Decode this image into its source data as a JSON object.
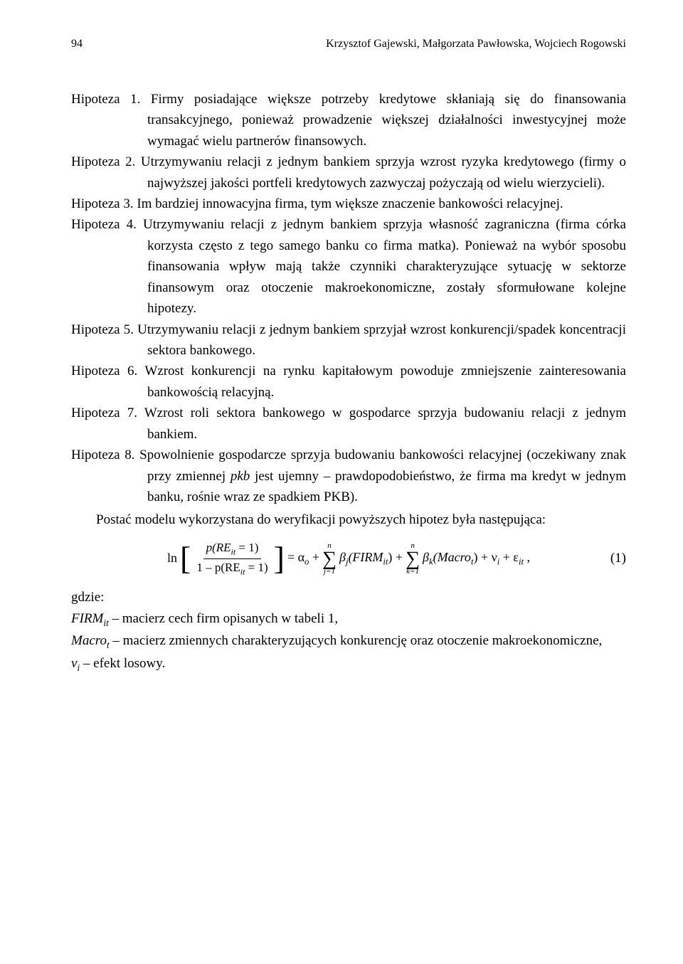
{
  "page_number": "94",
  "authors": "Krzysztof Gajewski, Małgorzata Pawłowska, Wojciech Rogowski",
  "hypotheses": [
    {
      "label": "Hipoteza 1.",
      "text": "Firmy posiadające większe potrzeby kredytowe skłaniają się do finansowania transakcyjnego, ponieważ prowadzenie większej działalności inwestycyjnej może wymagać wielu partnerów finansowych."
    },
    {
      "label": "Hipoteza 2.",
      "text": "Utrzymywaniu relacji z jednym bankiem sprzyja wzrost ryzyka kredytowego (firmy o najwyższej jakości portfeli kredytowych zazwyczaj pożyczają od wielu wierzycieli)."
    },
    {
      "label": "Hipoteza 3.",
      "text": "Im bardziej innowacyjna firma, tym większe znaczenie bankowości relacyjnej."
    },
    {
      "label": "Hipoteza 4.",
      "text": "Utrzymywaniu relacji z jednym bankiem sprzyja własność zagraniczna (firma córka korzysta często z tego samego banku co firma matka). Ponieważ na wybór sposobu finansowania wpływ mają także czynniki charakteryzujące sytuację w sektorze finansowym oraz otoczenie makroekonomiczne, zostały sformułowane kolejne hipotezy."
    },
    {
      "label": "Hipoteza 5.",
      "text": "Utrzymywaniu relacji z jednym bankiem sprzyjał wzrost konkurencji/spadek koncentracji sektora bankowego."
    },
    {
      "label": "Hipoteza 6.",
      "text": "Wzrost konkurencji na rynku kapitałowym powoduje zmniejszenie zainteresowania bankowością relacyjną."
    },
    {
      "label": "Hipoteza 7.",
      "text": "Wzrost roli sektora bankowego w gospodarce sprzyja budowaniu relacji z jednym bankiem."
    },
    {
      "label": "Hipoteza 8.",
      "text": "Spowolnienie gospodarcze sprzyja budowaniu bankowości relacyjnej (oczekiwany znak przy zmiennej pkb jest ujemny – prawdopodobieństwo, że firma ma kredyt w jednym banku, rośnie wraz ze spadkiem PKB)."
    }
  ],
  "post_paragraph": "Postać modelu wykorzystana do weryfikacji powyższych hipotez była następująca:",
  "formula": {
    "number": "(1)",
    "ln": "ln",
    "frac_num": "p(REᵢₜ = 1)",
    "frac_num_plain_a": "p(RE",
    "frac_num_plain_b": " = 1)",
    "frac_den_a": "1 – p(RE",
    "frac_den_b": " = 1)",
    "sub_it": "it",
    "eq": " = α",
    "sub_o": "o",
    "plus": " + ",
    "sum_top": "n",
    "sum_bot_j": "j=1",
    "sum_bot_k": "k=1",
    "beta_j": "β",
    "sub_j": "j",
    "firm": "(FIRM",
    "close_plus": ") + ",
    "beta_k": "β",
    "sub_k": "k",
    "macro": "(Macro",
    "sub_t": "t",
    "tail_a": ") + ν",
    "sub_i": "i",
    "tail_b": " + ε",
    "tail_c": " ,"
  },
  "where_label": "gdzie:",
  "where_items": [
    {
      "sym": "FIRM",
      "sub": "it",
      "text": " – macierz cech firm opisanych w tabeli 1,"
    },
    {
      "sym": "Macro",
      "sub": "t",
      "text": " – macierz zmiennych charakteryzujących konkurencję oraz otoczenie makroekonomiczne,"
    },
    {
      "sym": "ν",
      "sub": "i",
      "text": " – efekt losowy."
    }
  ]
}
